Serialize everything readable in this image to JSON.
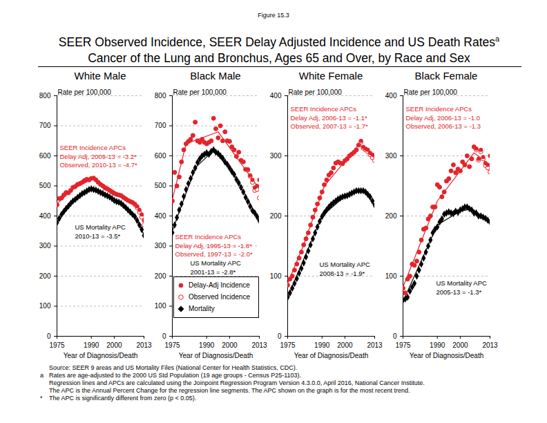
{
  "figure": "Figure 15.3",
  "title": "SEER Observed Incidence, SEER Delay Adjusted Incidence and US Death Rates",
  "title_note": "a",
  "subtitle": "Cancer of the Lung and Bronchus, Ages 65 and Over, by Race and Sex",
  "notes": [
    {
      "text": "Source: SEER 9 areas and US Mortality Files (National Center for Health Statistics, CDC)."
    },
    {
      "symbol": "a",
      "text": "Rates are age-adjusted to the 2000 US Std Population (19 age groups - Census P25-1103)."
    },
    {
      "text": "Regression lines and APCs are calculated using the Joinpoint Regression Program Version 4.3.0.0, April 2016, National Cancer Institute."
    },
    {
      "text": "The APC is the Annual Percent Change for the regression line segments. The APC shown on the graph is for the most recent trend."
    },
    {
      "symbol": "*",
      "text": "The APC is significantly different from zero (p < 0.05)."
    }
  ],
  "chart_data": [
    {
      "type": "scatter",
      "title": "White Male",
      "xlabel": "Year of Diagnosis/Death",
      "ylabel": "Rate per 100,000",
      "xlim": [
        1975,
        2013
      ],
      "xticks": [
        1975,
        1990,
        2000,
        2013
      ],
      "ylim": [
        0,
        800
      ],
      "yticks": [
        0,
        100,
        200,
        300,
        400,
        500,
        600,
        700,
        800
      ],
      "grid": true,
      "x": [
        1975,
        1976,
        1977,
        1978,
        1979,
        1980,
        1981,
        1982,
        1983,
        1984,
        1985,
        1986,
        1987,
        1988,
        1989,
        1990,
        1991,
        1992,
        1993,
        1994,
        1995,
        1996,
        1997,
        1998,
        1999,
        2000,
        2001,
        2002,
        2003,
        2004,
        2005,
        2006,
        2007,
        2008,
        2009,
        2010,
        2011,
        2012,
        2013
      ],
      "series": [
        {
          "name": "Delay-Adj Incidence",
          "color": "#e3242b",
          "marker": "circle",
          "values": [
            437,
            458,
            460,
            470,
            478,
            477,
            485,
            495,
            498,
            505,
            508,
            512,
            518,
            522,
            520,
            525,
            526,
            520,
            512,
            505,
            500,
            493,
            490,
            485,
            480,
            475,
            472,
            470,
            468,
            462,
            457,
            452,
            448,
            445,
            440,
            432,
            420,
            405,
            385
          ],
          "fit": {
            "x": [
              1975,
              1982,
              1991,
              2009,
              2013
            ],
            "values": [
              440,
              490,
              525,
              440,
              387
            ]
          }
        },
        {
          "name": "Observed Incidence",
          "color": "#e3242b",
          "marker": "circle-open",
          "values": [
            437,
            458,
            460,
            470,
            478,
            477,
            485,
            495,
            498,
            505,
            508,
            512,
            518,
            522,
            520,
            525,
            526,
            520,
            512,
            505,
            500,
            493,
            490,
            485,
            480,
            475,
            472,
            470,
            468,
            462,
            457,
            452,
            448,
            445,
            438,
            428,
            413,
            396,
            370
          ]
        },
        {
          "name": "Mortality",
          "color": "#000000",
          "marker": "diamond",
          "values": [
            378,
            392,
            405,
            415,
            425,
            433,
            442,
            450,
            455,
            462,
            468,
            474,
            478,
            483,
            488,
            490,
            488,
            486,
            482,
            478,
            475,
            470,
            467,
            463,
            458,
            452,
            448,
            446,
            442,
            435,
            428,
            420,
            413,
            405,
            398,
            385,
            370,
            355,
            335
          ],
          "fit": {
            "x": [
              1975,
              1982,
              1990,
              2001,
              2010,
              2013
            ],
            "values": [
              380,
              448,
              490,
              450,
              388,
              337
            ]
          }
        }
      ],
      "annotations": [
        {
          "text": [
            "SEER Incidence APCs",
            "Delay Adj, 2009-13 = -3.2*",
            "Observed, 2010-13 = -4.7*"
          ],
          "color": "#e3242b"
        },
        {
          "text": [
            "US Mortality APC",
            "2010-13 = -3.5*"
          ],
          "color": "#000000"
        }
      ]
    },
    {
      "type": "scatter",
      "title": "Black Male",
      "xlabel": "Year of Diagnosis/Death",
      "ylabel": "Rate per 100,000",
      "xlim": [
        1975,
        2013
      ],
      "xticks": [
        1975,
        1990,
        2000,
        2013
      ],
      "ylim": [
        0,
        800
      ],
      "yticks": [
        0,
        100,
        200,
        300,
        400,
        500,
        600,
        700,
        800
      ],
      "grid": true,
      "legend": "bottom",
      "x": [
        1975,
        1976,
        1977,
        1978,
        1979,
        1980,
        1981,
        1982,
        1983,
        1984,
        1985,
        1986,
        1987,
        1988,
        1989,
        1990,
        1991,
        1992,
        1993,
        1994,
        1995,
        1996,
        1997,
        1998,
        1999,
        2000,
        2001,
        2002,
        2003,
        2004,
        2005,
        2006,
        2007,
        2008,
        2009,
        2010,
        2011,
        2012,
        2013
      ],
      "series": [
        {
          "name": "Delay-Adj Incidence",
          "color": "#e3242b",
          "marker": "circle",
          "values": [
            450,
            545,
            500,
            530,
            580,
            620,
            640,
            648,
            655,
            668,
            712,
            650,
            645,
            655,
            645,
            640,
            645,
            650,
            725,
            690,
            660,
            700,
            650,
            680,
            650,
            648,
            630,
            620,
            598,
            612,
            585,
            580,
            555,
            555,
            535,
            520,
            495,
            500,
            520
          ],
          "fit": {
            "x": [
              1975,
              1981,
              1995,
              2013
            ],
            "values": [
              455,
              640,
              680,
              490
            ]
          }
        },
        {
          "name": "Observed Incidence",
          "color": "#e3242b",
          "marker": "circle-open",
          "values": [
            450,
            545,
            500,
            530,
            580,
            620,
            640,
            648,
            655,
            668,
            712,
            650,
            645,
            655,
            645,
            640,
            645,
            650,
            725,
            690,
            660,
            700,
            650,
            680,
            650,
            648,
            630,
            620,
            598,
            612,
            585,
            580,
            555,
            553,
            532,
            512,
            485,
            488,
            460
          ]
        },
        {
          "name": "Mortality",
          "color": "#000000",
          "marker": "diamond",
          "values": [
            345,
            370,
            395,
            420,
            440,
            465,
            488,
            508,
            525,
            545,
            560,
            578,
            590,
            600,
            605,
            610,
            605,
            615,
            620,
            612,
            608,
            600,
            592,
            580,
            572,
            560,
            548,
            538,
            522,
            510,
            495,
            480,
            462,
            448,
            432,
            418,
            410,
            398,
            385
          ],
          "fit": {
            "x": [
              1975,
              1985,
              1993,
              2001,
              2013
            ],
            "values": [
              350,
              560,
              618,
              550,
              385
            ]
          }
        }
      ],
      "annotations": [
        {
          "text": [
            "SEER Incidence APCs",
            "Delay Adj, 1995-13 = -1.8*",
            "Observed, 1997-13 = -2.0*"
          ],
          "color": "#e3242b"
        },
        {
          "text": [
            "US Mortality APC",
            "2001-13 = -2.8*"
          ],
          "color": "#000000"
        }
      ]
    },
    {
      "type": "scatter",
      "title": "White Female",
      "xlabel": "Year of Diagnosis/Death",
      "ylabel": "Rate per 100,000",
      "xlim": [
        1975,
        2013
      ],
      "xticks": [
        1975,
        1990,
        2000,
        2013
      ],
      "ylim": [
        0,
        400
      ],
      "yticks": [
        0,
        100,
        200,
        300,
        400
      ],
      "grid": true,
      "x": [
        1975,
        1976,
        1977,
        1978,
        1979,
        1980,
        1981,
        1982,
        1983,
        1984,
        1985,
        1986,
        1987,
        1988,
        1989,
        1990,
        1991,
        1992,
        1993,
        1994,
        1995,
        1996,
        1997,
        1998,
        1999,
        2000,
        2001,
        2002,
        2003,
        2004,
        2005,
        2006,
        2007,
        2008,
        2009,
        2010,
        2011,
        2012,
        2013
      ],
      "series": [
        {
          "name": "Delay-Adj Incidence",
          "color": "#e3242b",
          "marker": "circle",
          "values": [
            85,
            95,
            100,
            110,
            120,
            130,
            140,
            152,
            162,
            172,
            185,
            198,
            210,
            220,
            230,
            240,
            252,
            260,
            268,
            272,
            280,
            288,
            290,
            288,
            287,
            292,
            295,
            300,
            303,
            306,
            310,
            318,
            325,
            315,
            312,
            310,
            305,
            302,
            300
          ],
          "fit": {
            "x": [
              1975,
              1982,
              1991,
              2006,
              2013
            ],
            "values": [
              88,
              152,
              250,
              318,
              300
            ]
          }
        },
        {
          "name": "Observed Incidence",
          "color": "#e3242b",
          "marker": "circle-open",
          "values": [
            85,
            95,
            100,
            110,
            120,
            130,
            140,
            152,
            162,
            172,
            185,
            198,
            210,
            220,
            230,
            240,
            252,
            260,
            268,
            272,
            280,
            288,
            290,
            288,
            287,
            292,
            295,
            300,
            303,
            306,
            310,
            318,
            323,
            313,
            310,
            307,
            302,
            297,
            292
          ]
        },
        {
          "name": "Mortality",
          "color": "#000000",
          "marker": "diamond",
          "values": [
            65,
            72,
            80,
            88,
            96,
            105,
            113,
            122,
            132,
            142,
            152,
            162,
            172,
            182,
            191,
            199,
            205,
            210,
            215,
            219,
            222,
            225,
            228,
            230,
            232,
            233,
            234,
            236,
            238,
            240,
            242,
            242,
            242,
            242,
            240,
            236,
            232,
            225,
            218
          ],
          "fit": {
            "x": [
              1975,
              1990,
              2000,
              2008,
              2013
            ],
            "values": [
              65,
              200,
              233,
              243,
              218
            ]
          }
        }
      ],
      "annotations": [
        {
          "text": [
            "SEER Incidence APCs",
            "Delay Adj, 2006-13 = -1.1*",
            "Observed, 2007-13 = -1.7*"
          ],
          "color": "#e3242b"
        },
        {
          "text": [
            "US Mortality APC",
            "2008-13 = -1.9*"
          ],
          "color": "#000000"
        }
      ]
    },
    {
      "type": "scatter",
      "title": "Black Female",
      "xlabel": "Year of Diagnosis/Death",
      "ylabel": "Rate per 100,000",
      "xlim": [
        1975,
        2013
      ],
      "xticks": [
        1975,
        1990,
        2000,
        2013
      ],
      "ylim": [
        0,
        400
      ],
      "yticks": [
        0,
        100,
        200,
        300,
        400
      ],
      "grid": true,
      "x": [
        1975,
        1976,
        1977,
        1978,
        1979,
        1980,
        1981,
        1982,
        1983,
        1984,
        1985,
        1986,
        1987,
        1988,
        1989,
        1990,
        1991,
        1992,
        1993,
        1994,
        1995,
        1996,
        1997,
        1998,
        1999,
        2000,
        2001,
        2002,
        2003,
        2004,
        2005,
        2006,
        2007,
        2008,
        2009,
        2010,
        2011,
        2012,
        2013
      ],
      "series": [
        {
          "name": "Delay-Adj Incidence",
          "color": "#e3242b",
          "marker": "circle",
          "values": [
            80,
            72,
            95,
            100,
            120,
            118,
            125,
            140,
            160,
            178,
            180,
            195,
            200,
            215,
            215,
            252,
            248,
            232,
            240,
            258,
            262,
            275,
            285,
            272,
            278,
            275,
            290,
            285,
            300,
            282,
            295,
            315,
            312,
            295,
            310,
            298,
            288,
            285,
            300
          ],
          "fit": {
            "x": [
              1975,
              1990,
              2006,
              2013
            ],
            "values": [
              82,
              225,
              305,
              285
            ]
          }
        },
        {
          "name": "Observed Incidence",
          "color": "#e3242b",
          "marker": "circle-open",
          "values": [
            80,
            72,
            95,
            100,
            120,
            118,
            125,
            140,
            160,
            178,
            180,
            195,
            200,
            215,
            215,
            252,
            248,
            232,
            240,
            258,
            262,
            275,
            285,
            272,
            278,
            275,
            290,
            285,
            300,
            282,
            295,
            315,
            310,
            293,
            307,
            295,
            284,
            280,
            273
          ]
        },
        {
          "name": "Mortality",
          "color": "#000000",
          "marker": "diamond",
          "values": [
            60,
            62,
            65,
            75,
            82,
            88,
            100,
            110,
            120,
            130,
            140,
            150,
            160,
            172,
            178,
            182,
            190,
            195,
            203,
            205,
            207,
            205,
            204,
            208,
            206,
            210,
            212,
            215,
            215,
            212,
            210,
            205,
            205,
            200,
            200,
            198,
            196,
            193,
            190
          ],
          "fit": {
            "x": [
              1975,
              1990,
              2000,
              2005,
              2013
            ],
            "values": [
              58,
              185,
              208,
              212,
              190
            ]
          }
        }
      ],
      "annotations": [
        {
          "text": [
            "SEER Incidence APCs",
            "Delay Adj, 2006-13 = -1.0",
            "Observed, 2006-13 = -1.3"
          ],
          "color": "#e3242b"
        },
        {
          "text": [
            "US Mortality APC",
            "2005-13 = -1.3*"
          ],
          "color": "#000000"
        }
      ]
    }
  ]
}
